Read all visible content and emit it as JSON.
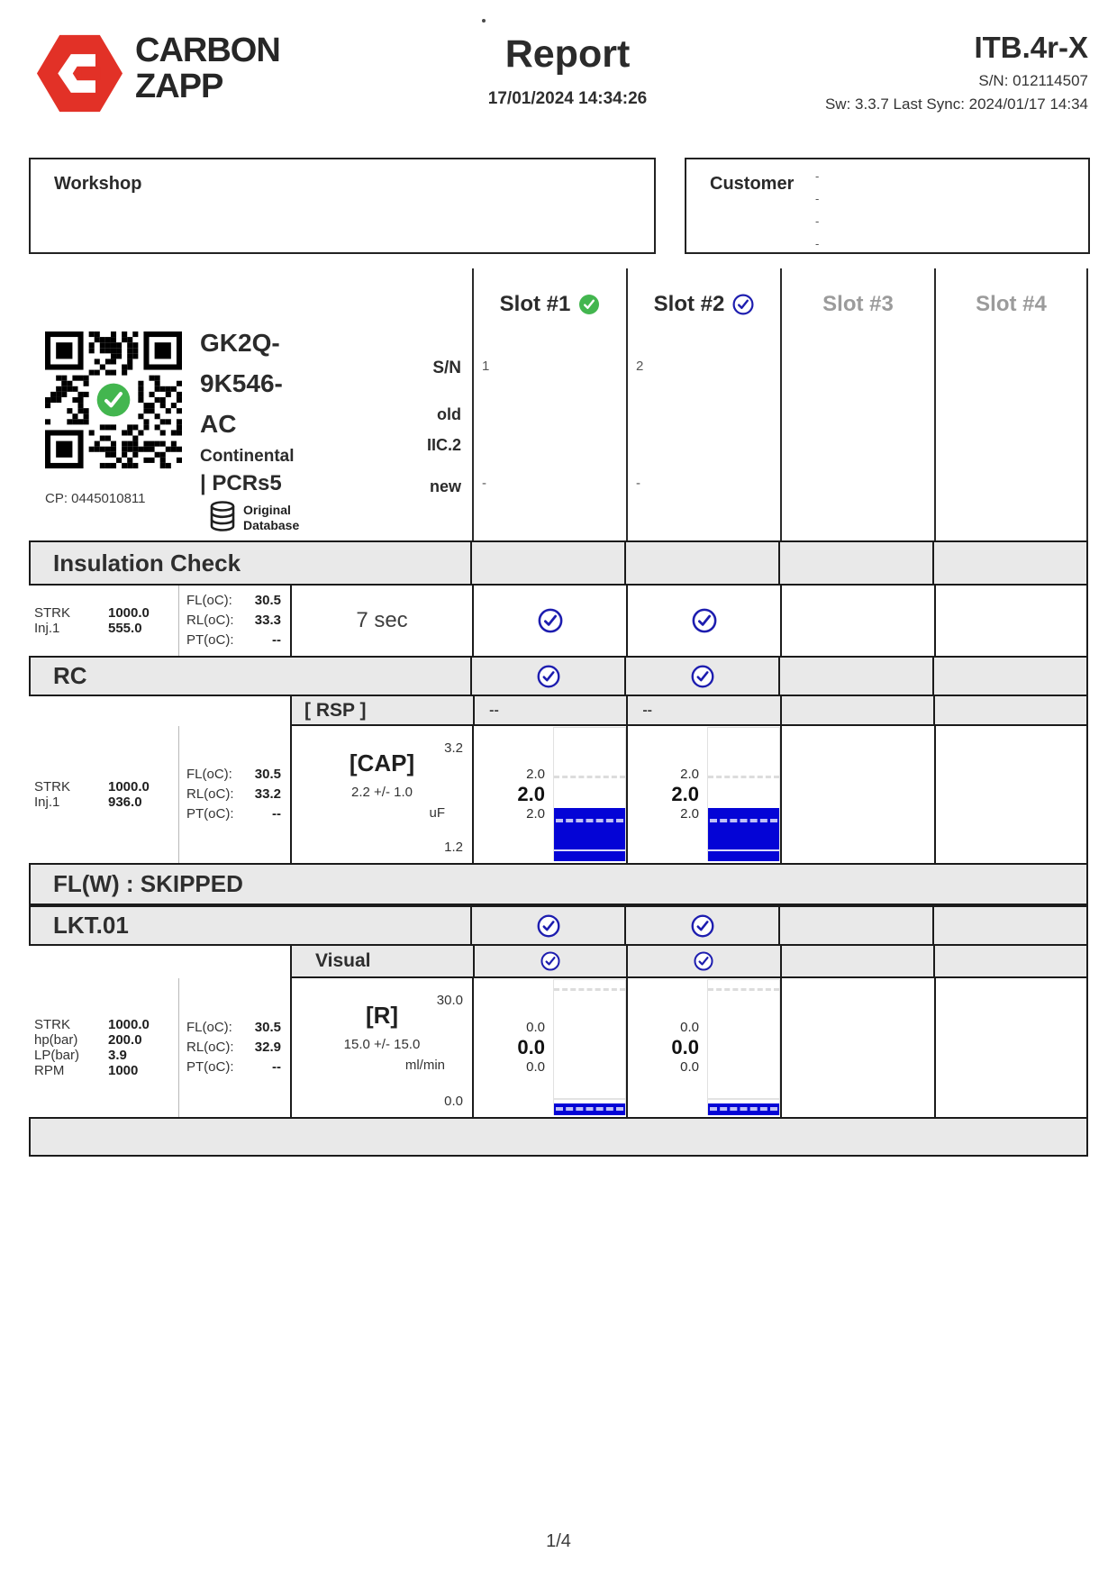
{
  "header": {
    "brand1": "CARBON",
    "brand2": "ZAPP",
    "title": "Report",
    "datetime": "17/01/2024 14:34:26",
    "device": "ITB.4r-X",
    "serial": "S/N: 012114507",
    "sync": "Sw: 3.3.7 Last Sync: 2024/01/17 14:34"
  },
  "boxes": {
    "workshop_label": "Workshop",
    "customer_label": "Customer",
    "customer_dashes": [
      "-",
      "-",
      "-",
      "-"
    ]
  },
  "part": {
    "code_line1": "GK2Q-",
    "code_line2": "9K546-",
    "code_line3": "AC",
    "maker": "Continental",
    "family": "| PCRs5",
    "db_line1": "Original",
    "db_line2": "Database",
    "cp": "CP: 0445010811"
  },
  "slots": {
    "s1": "Slot #1",
    "s2": "Slot #2",
    "s3": "Slot #3",
    "s4": "Slot #4",
    "sn_label": "S/N",
    "old_label": "old",
    "old_code": "IIC.2",
    "new_label": "new",
    "sn1": "1",
    "sn2": "2",
    "new1": "-",
    "new2": "-"
  },
  "sections": {
    "insulation": {
      "title": "Insulation Check",
      "p": [
        {
          "l": "STRK",
          "v": "1000.0"
        },
        {
          "l": "Inj.1",
          "v": "555.0"
        }
      ],
      "t": [
        {
          "l": "FL(oC):",
          "v": "30.5"
        },
        {
          "l": "RL(oC):",
          "v": "33.3"
        },
        {
          "l": "PT(oC):",
          "v": "--"
        }
      ],
      "test": "7 sec"
    },
    "rc": {
      "title": "RC",
      "sub": "[ RSP ]",
      "sub1": "--",
      "sub2": "--",
      "p": [
        {
          "l": "STRK",
          "v": "1000.0"
        },
        {
          "l": "Inj.1",
          "v": "936.0"
        }
      ],
      "t": [
        {
          "l": "FL(oC):",
          "v": "30.5"
        },
        {
          "l": "RL(oC):",
          "v": "33.2"
        },
        {
          "l": "PT(oC):",
          "v": "--"
        }
      ],
      "name": "[CAP]",
      "spec": "2.2 +/- 1.0",
      "unit": "uF",
      "scale_max": "3.2",
      "scale_min": "1.2",
      "range": {
        "min": 1.2,
        "max": 3.2
      },
      "readings": [
        {
          "hi": "2.0",
          "avg": "2.0",
          "lo": "2.0",
          "value": 2.0
        },
        {
          "hi": "2.0",
          "avg": "2.0",
          "lo": "2.0",
          "value": 2.0
        }
      ]
    },
    "flw": {
      "title": "FL(W) : SKIPPED"
    },
    "lkt": {
      "title": "LKT.01",
      "sub": "Visual",
      "p": [
        {
          "l": "STRK",
          "v": "1000.0"
        },
        {
          "l": "hp(bar)",
          "v": "200.0"
        },
        {
          "l": "LP(bar)",
          "v": "3.9"
        },
        {
          "l": "RPM",
          "v": "1000"
        }
      ],
      "t": [
        {
          "l": "FL(oC):",
          "v": "30.5"
        },
        {
          "l": "RL(oC):",
          "v": "32.9"
        },
        {
          "l": "PT(oC):",
          "v": "--"
        }
      ],
      "name": "[R]",
      "spec": "15.0 +/- 15.0",
      "unit": "ml/min",
      "scale_max": "30.0",
      "scale_min": "0.0",
      "range": {
        "min": 0.0,
        "max": 30.0
      },
      "readings": [
        {
          "hi": "0.0",
          "avg": "0.0",
          "lo": "0.0",
          "value": 0.0
        },
        {
          "hi": "0.0",
          "avg": "0.0",
          "lo": "0.0",
          "value": 0.0
        }
      ]
    }
  },
  "footer": {
    "page": "1/4"
  }
}
